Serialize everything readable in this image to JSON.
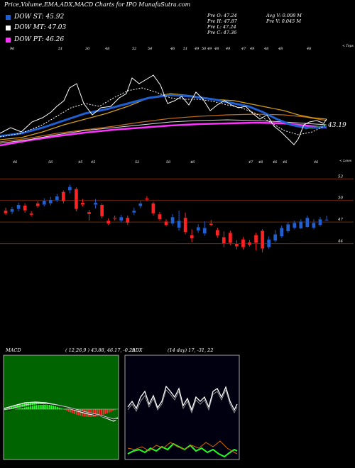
{
  "header": {
    "title": "Price,Volume,EMA,ADX,MACD Charts for IPO MunafaSutra.com"
  },
  "legend": [
    {
      "label": "DOW ST: 45.92",
      "color": "#1f5fd0"
    },
    {
      "label": "DOW MT: 47.03",
      "color": "#ffffff"
    },
    {
      "label": "DOW PT: 46.26",
      "color": "#ff33ff"
    }
  ],
  "ohlc": {
    "o": "Pre  O: 47.24",
    "h": "Pre  H: 47.87",
    "l": "Pre  L: 47.24",
    "c": "Pre  C: 47.36",
    "avgv": "Avg V: 0.008 M",
    "prev": "Pre  V: 0.045 M"
  },
  "upper_chart": {
    "corner_label": "< Tops",
    "last_value": "43.19",
    "top_labels": [
      "96",
      "51",
      "30",
      "48",
      "52",
      "54",
      "46",
      "51",
      "49",
      "50",
      "49",
      "48",
      "49",
      "47",
      "49",
      "48",
      "48",
      "46"
    ],
    "lower_labels": [
      "46",
      "56",
      "45",
      "45",
      "52",
      "50",
      "46",
      "47",
      "48",
      "46",
      "46",
      "46"
    ]
  },
  "lows_label": "< Lows",
  "chart_data": {
    "type": "candlestick",
    "price_axis": {
      "ticks": [
        53,
        50,
        47,
        44
      ],
      "range": [
        41,
        55
      ]
    },
    "candles": [
      {
        "o": 48.6,
        "c": 48.2,
        "h": 49.0,
        "l": 48.0
      },
      {
        "o": 48.4,
        "c": 48.8,
        "h": 49.1,
        "l": 48.1
      },
      {
        "o": 48.8,
        "c": 49.4,
        "h": 49.7,
        "l": 48.5
      },
      {
        "o": 49.3,
        "c": 48.6,
        "h": 49.6,
        "l": 48.3
      },
      {
        "o": 48.2,
        "c": 48.0,
        "h": 48.5,
        "l": 47.8
      },
      {
        "o": 49.6,
        "c": 49.2,
        "h": 49.9,
        "l": 49.0
      },
      {
        "o": 49.4,
        "c": 50.0,
        "h": 50.3,
        "l": 49.2
      },
      {
        "o": 49.6,
        "c": 50.1,
        "h": 50.5,
        "l": 49.3
      },
      {
        "o": 50.0,
        "c": 50.6,
        "h": 50.9,
        "l": 49.8
      },
      {
        "o": 51.2,
        "c": 49.9,
        "h": 51.4,
        "l": 49.6
      },
      {
        "o": 51.4,
        "c": 51.9,
        "h": 52.2,
        "l": 51.0
      },
      {
        "o": 51.6,
        "c": 48.8,
        "h": 51.8,
        "l": 48.5
      },
      {
        "o": 49.7,
        "c": 49.4,
        "h": 50.2,
        "l": 49.2
      },
      {
        "o": 48.4,
        "c": 48.1,
        "h": 48.7,
        "l": 47.2
      },
      {
        "o": 49.4,
        "c": 49.7,
        "h": 50.2,
        "l": 48.9
      },
      {
        "o": 49.4,
        "c": 47.8,
        "h": 49.6,
        "l": 47.5
      },
      {
        "o": 47.2,
        "c": 46.8,
        "h": 47.5,
        "l": 46.6
      },
      {
        "o": 47.6,
        "c": 47.5,
        "h": 47.9,
        "l": 47.2
      },
      {
        "o": 47.2,
        "c": 47.7,
        "h": 48.0,
        "l": 47.0
      },
      {
        "o": 47.6,
        "c": 46.9,
        "h": 47.9,
        "l": 46.6
      },
      {
        "o": 48.3,
        "c": 48.6,
        "h": 49.0,
        "l": 48.0
      },
      {
        "o": 49.2,
        "c": 49.6,
        "h": 49.9,
        "l": 48.9
      },
      {
        "o": 50.3,
        "c": 50.1,
        "h": 50.6,
        "l": 49.9
      },
      {
        "o": 49.6,
        "c": 48.2,
        "h": 49.8,
        "l": 47.9
      },
      {
        "o": 48.1,
        "c": 47.4,
        "h": 48.4,
        "l": 47.2
      },
      {
        "o": 47.1,
        "c": 46.6,
        "h": 47.4,
        "l": 46.4
      },
      {
        "o": 46.8,
        "c": 47.7,
        "h": 48.1,
        "l": 46.5
      },
      {
        "o": 46.2,
        "c": 47.2,
        "h": 48.6,
        "l": 45.8
      },
      {
        "o": 47.6,
        "c": 45.6,
        "h": 48.3,
        "l": 45.3
      },
      {
        "o": 45.2,
        "c": 44.7,
        "h": 46.0,
        "l": 44.2
      },
      {
        "o": 45.8,
        "c": 46.3,
        "h": 46.7,
        "l": 45.5
      },
      {
        "o": 45.4,
        "c": 46.2,
        "h": 47.1,
        "l": 45.1
      },
      {
        "o": 46.8,
        "c": 46.6,
        "h": 47.3,
        "l": 46.4
      },
      {
        "o": 45.9,
        "c": 45.1,
        "h": 46.2,
        "l": 44.8
      },
      {
        "o": 44.9,
        "c": 44.0,
        "h": 45.7,
        "l": 43.5
      },
      {
        "o": 45.5,
        "c": 44.1,
        "h": 45.8,
        "l": 43.8
      },
      {
        "o": 44.0,
        "c": 43.6,
        "h": 44.5,
        "l": 43.2
      },
      {
        "o": 44.6,
        "c": 43.5,
        "h": 44.9,
        "l": 43.2
      },
      {
        "o": 44.2,
        "c": 43.8,
        "h": 44.5,
        "l": 43.6
      },
      {
        "o": 45.2,
        "c": 44.1,
        "h": 45.5,
        "l": 43.1
      },
      {
        "o": 45.8,
        "c": 43.3,
        "h": 46.0,
        "l": 42.8
      },
      {
        "o": 43.5,
        "c": 44.6,
        "h": 45.0,
        "l": 43.3
      },
      {
        "o": 44.4,
        "c": 45.3,
        "h": 45.9,
        "l": 44.2
      },
      {
        "o": 45.0,
        "c": 46.2,
        "h": 46.5,
        "l": 44.8
      },
      {
        "o": 45.7,
        "c": 46.7,
        "h": 47.0,
        "l": 45.5
      },
      {
        "o": 46.2,
        "c": 46.9,
        "h": 47.2,
        "l": 46.0
      },
      {
        "o": 46.1,
        "c": 47.1,
        "h": 47.4,
        "l": 46.0
      },
      {
        "o": 46.3,
        "c": 47.6,
        "h": 47.9,
        "l": 46.2
      },
      {
        "o": 46.2,
        "c": 46.9,
        "h": 47.4,
        "l": 46.0
      },
      {
        "o": 46.6,
        "c": 47.4,
        "h": 47.7,
        "l": 46.4
      },
      {
        "o": 47.24,
        "c": 47.36,
        "h": 47.87,
        "l": 47.24
      }
    ]
  },
  "macd": {
    "label": "MACD",
    "params": "( 12,26,9 ) 43.88, 46.17, -0.29"
  },
  "adx": {
    "label": "ADX",
    "params": "(14 day) 17, -31, 22"
  },
  "colors": {
    "bull": "#1f5fd0",
    "bear": "#ff2222",
    "grid": "#7a2a08",
    "macd_bg": "#006400",
    "green_hist": "#22ff22",
    "red_hist": "#ff3333"
  }
}
